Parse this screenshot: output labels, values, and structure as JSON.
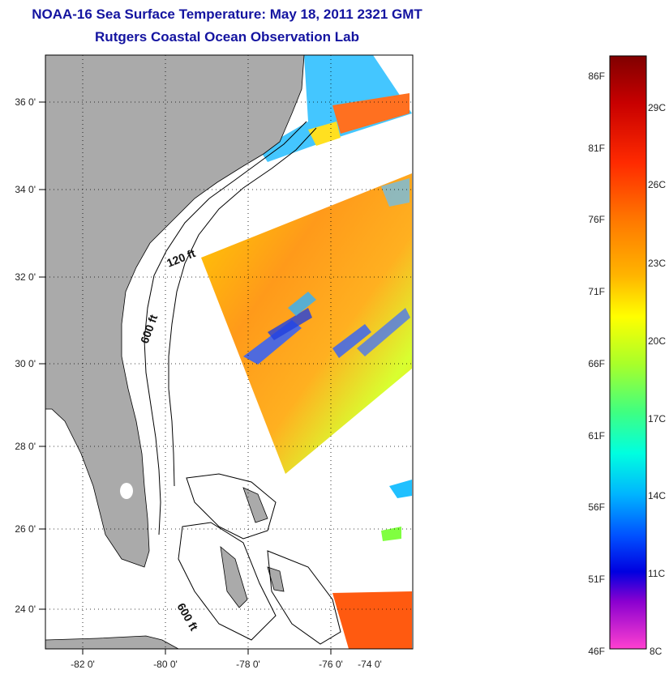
{
  "title": {
    "line1": "NOAA-16 Sea Surface Temperature:  May 18, 2011 2321 GMT",
    "line2": "Rutgers Coastal Ocean Observation Lab"
  },
  "map": {
    "lat_labels": [
      "36 0'",
      "34 0'",
      "32 0'",
      "30 0'",
      "28 0'",
      "26 0'",
      "24 0'"
    ],
    "lon_labels": [
      "-82 0'",
      "-80 0'",
      "-78 0'",
      "-76 0'",
      "-74 0'"
    ],
    "contour_labels": [
      "120 ft",
      "600 ft",
      "600 ft"
    ],
    "land_color": "#aaaaaa",
    "grid": "dotted"
  },
  "colorbar": {
    "f_labels": [
      "86F",
      "81F",
      "76F",
      "71F",
      "66F",
      "61F",
      "56F",
      "51F",
      "46F"
    ],
    "c_labels": [
      "29C",
      "26C",
      "23C",
      "20C",
      "17C",
      "14C",
      "11C",
      "8C"
    ]
  }
}
